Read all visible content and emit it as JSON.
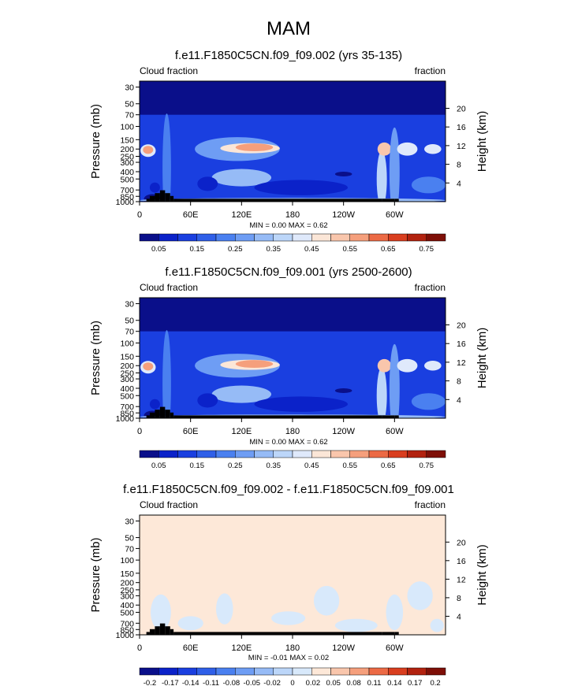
{
  "page": {
    "title": "MAM"
  },
  "palettes": {
    "seq": [
      "#0a0f8a",
      "#0b22c9",
      "#1a3fe0",
      "#2f5fe8",
      "#4a80f0",
      "#6e9df4",
      "#96bbf6",
      "#bcd6f9",
      "#dfe9fb",
      "#fbe6d7",
      "#f9c6ac",
      "#f59f7c",
      "#ec6a45",
      "#d93e1f",
      "#b2220f",
      "#7e0f07"
    ],
    "div": [
      "#0a0f8a",
      "#0b22c9",
      "#1a3fe0",
      "#2f5fe8",
      "#4a80f0",
      "#6e9df4",
      "#96bbf6",
      "#bcd6f9",
      "#d8e9fb",
      "#fde8d8",
      "#f9c6ac",
      "#f59f7c",
      "#ec6a45",
      "#d93e1f",
      "#b2220f",
      "#7e0f07"
    ],
    "terrain": "#000000"
  },
  "chart_data": [
    {
      "type": "heatmap",
      "title": "f.e11.F1850C5CN.f09_f09.002 (yrs 35-135)",
      "left_label": "Cloud fraction",
      "right_label": "fraction",
      "ylabel": "Pressure (mb)",
      "ylabel_right": "Height (km)",
      "xticks": [
        "0",
        "60E",
        "120E",
        "180",
        "120W",
        "60W"
      ],
      "yticks": [
        "30",
        "50",
        "70",
        "100",
        "150",
        "200",
        "250",
        "300",
        "400",
        "500",
        "700",
        "850",
        "1000"
      ],
      "yticks_right": [
        "20",
        "16",
        "12",
        "8",
        "4"
      ],
      "stats": "MIN =   0.00  MAX =   0.62",
      "colorbar": [
        "0.05",
        "0.15",
        "0.25",
        "0.35",
        "0.45",
        "0.55",
        "0.65",
        "0.75"
      ],
      "palette": "seq",
      "bg_level": 2,
      "blobs": [
        {
          "lon": 15,
          "p": 930,
          "rx": 10,
          "rp": 400,
          "level": 0
        },
        {
          "lon": 18,
          "p": 650,
          "rx": 6,
          "rp": 200,
          "level": 1
        },
        {
          "lon": 10,
          "p": 210,
          "rx": 9,
          "rp": 80,
          "level": 8
        },
        {
          "lon": 10,
          "p": 205,
          "rx": 6,
          "rp": 50,
          "level": 11
        },
        {
          "lon": 32,
          "p": 350,
          "rx": 5,
          "rp": 650,
          "level": 4
        },
        {
          "lon": 115,
          "p": 200,
          "rx": 50,
          "rp": 140,
          "level": 5
        },
        {
          "lon": 120,
          "p": 480,
          "rx": 35,
          "rp": 250,
          "level": 6
        },
        {
          "lon": 130,
          "p": 195,
          "rx": 35,
          "rp": 60,
          "level": 9
        },
        {
          "lon": 135,
          "p": 190,
          "rx": 22,
          "rp": 45,
          "level": 11
        },
        {
          "lon": 190,
          "p": 650,
          "rx": 55,
          "rp": 300,
          "level": 1
        },
        {
          "lon": 240,
          "p": 430,
          "rx": 10,
          "rp": 60,
          "level": 0
        },
        {
          "lon": 80,
          "p": 580,
          "rx": 12,
          "rp": 250,
          "level": 1
        },
        {
          "lon": 285,
          "p": 500,
          "rx": 6,
          "rp": 700,
          "level": 7
        },
        {
          "lon": 288,
          "p": 200,
          "rx": 8,
          "rp": 80,
          "level": 10
        },
        {
          "lon": 300,
          "p": 400,
          "rx": 6,
          "rp": 700,
          "level": 5
        },
        {
          "lon": 315,
          "p": 200,
          "rx": 12,
          "rp": 80,
          "level": 8
        },
        {
          "lon": 345,
          "p": 200,
          "rx": 10,
          "rp": 60,
          "level": 8
        },
        {
          "lon": 340,
          "p": 600,
          "rx": 20,
          "rp": 300,
          "level": 4
        },
        {
          "lon": 180,
          "p": 960,
          "rx": 180,
          "rp": 50,
          "level": 6
        }
      ],
      "terrain": [
        [
          3,
          0
        ],
        [
          8,
          1
        ],
        [
          12,
          2
        ],
        [
          18,
          3
        ],
        [
          24,
          4
        ],
        [
          30,
          3
        ],
        [
          36,
          2
        ],
        [
          40,
          1
        ],
        [
          285,
          1
        ],
        [
          300,
          1
        ],
        [
          305,
          0
        ]
      ]
    },
    {
      "type": "heatmap",
      "title": "f.e11.F1850C5CN.f09_f09.001 (yrs 2500-2600)",
      "left_label": "Cloud fraction",
      "right_label": "fraction",
      "ylabel": "Pressure (mb)",
      "ylabel_right": "Height (km)",
      "xticks": [
        "0",
        "60E",
        "120E",
        "180",
        "120W",
        "60W"
      ],
      "yticks": [
        "30",
        "50",
        "70",
        "100",
        "150",
        "200",
        "250",
        "300",
        "400",
        "500",
        "700",
        "850",
        "1000"
      ],
      "yticks_right": [
        "20",
        "16",
        "12",
        "8",
        "4"
      ],
      "stats": "MIN =   0.00  MAX =   0.62",
      "colorbar": [
        "0.05",
        "0.15",
        "0.25",
        "0.35",
        "0.45",
        "0.55",
        "0.65",
        "0.75"
      ],
      "palette": "seq",
      "bg_level": 2,
      "blobs": [
        {
          "lon": 15,
          "p": 930,
          "rx": 10,
          "rp": 400,
          "level": 0
        },
        {
          "lon": 18,
          "p": 650,
          "rx": 6,
          "rp": 200,
          "level": 1
        },
        {
          "lon": 10,
          "p": 210,
          "rx": 9,
          "rp": 80,
          "level": 8
        },
        {
          "lon": 10,
          "p": 205,
          "rx": 6,
          "rp": 50,
          "level": 11
        },
        {
          "lon": 32,
          "p": 350,
          "rx": 5,
          "rp": 650,
          "level": 4
        },
        {
          "lon": 115,
          "p": 200,
          "rx": 50,
          "rp": 140,
          "level": 5
        },
        {
          "lon": 120,
          "p": 480,
          "rx": 35,
          "rp": 250,
          "level": 6
        },
        {
          "lon": 130,
          "p": 195,
          "rx": 35,
          "rp": 60,
          "level": 9
        },
        {
          "lon": 135,
          "p": 190,
          "rx": 22,
          "rp": 45,
          "level": 11
        },
        {
          "lon": 190,
          "p": 650,
          "rx": 55,
          "rp": 300,
          "level": 1
        },
        {
          "lon": 240,
          "p": 430,
          "rx": 10,
          "rp": 60,
          "level": 0
        },
        {
          "lon": 80,
          "p": 580,
          "rx": 12,
          "rp": 250,
          "level": 1
        },
        {
          "lon": 285,
          "p": 500,
          "rx": 6,
          "rp": 700,
          "level": 7
        },
        {
          "lon": 288,
          "p": 200,
          "rx": 8,
          "rp": 80,
          "level": 10
        },
        {
          "lon": 300,
          "p": 400,
          "rx": 6,
          "rp": 700,
          "level": 5
        },
        {
          "lon": 315,
          "p": 200,
          "rx": 12,
          "rp": 80,
          "level": 8
        },
        {
          "lon": 345,
          "p": 200,
          "rx": 10,
          "rp": 60,
          "level": 8
        },
        {
          "lon": 340,
          "p": 600,
          "rx": 20,
          "rp": 300,
          "level": 4
        },
        {
          "lon": 180,
          "p": 960,
          "rx": 180,
          "rp": 50,
          "level": 6
        }
      ],
      "terrain": [
        [
          3,
          0
        ],
        [
          8,
          1
        ],
        [
          12,
          2
        ],
        [
          18,
          3
        ],
        [
          24,
          4
        ],
        [
          30,
          3
        ],
        [
          36,
          2
        ],
        [
          40,
          1
        ],
        [
          285,
          1
        ],
        [
          300,
          1
        ],
        [
          305,
          0
        ]
      ]
    },
    {
      "type": "heatmap",
      "title": "f.e11.F1850C5CN.f09_f09.002 - f.e11.F1850C5CN.f09_f09.001",
      "left_label": "Cloud fraction",
      "right_label": "fraction",
      "ylabel": "Pressure (mb)",
      "ylabel_right": "Height (km)",
      "xticks": [
        "0",
        "60E",
        "120E",
        "180",
        "120W",
        "60W"
      ],
      "yticks": [
        "30",
        "50",
        "70",
        "100",
        "150",
        "200",
        "250",
        "300",
        "400",
        "500",
        "700",
        "850",
        "1000"
      ],
      "yticks_right": [
        "20",
        "16",
        "12",
        "8",
        "4"
      ],
      "stats": "MIN =  -0.01  MAX =   0.02",
      "colorbar": [
        "-0.2",
        "-0.17",
        "-0.14",
        "-0.11",
        "-0.08",
        "-0.05",
        "-0.02",
        "0",
        "0.02",
        "0.05",
        "0.08",
        "0.11",
        "0.14",
        "0.17",
        "0.2"
      ],
      "palette": "div",
      "bg_level": 9,
      "blobs": [
        {
          "lon": 25,
          "p": 500,
          "rx": 12,
          "rp": 500,
          "level": 8
        },
        {
          "lon": 60,
          "p": 700,
          "rx": 15,
          "rp": 300,
          "level": 8
        },
        {
          "lon": 100,
          "p": 450,
          "rx": 10,
          "rp": 400,
          "level": 8
        },
        {
          "lon": 175,
          "p": 600,
          "rx": 20,
          "rp": 250,
          "level": 8
        },
        {
          "lon": 220,
          "p": 350,
          "rx": 15,
          "rp": 300,
          "level": 8
        },
        {
          "lon": 255,
          "p": 750,
          "rx": 25,
          "rp": 300,
          "level": 8
        },
        {
          "lon": 300,
          "p": 500,
          "rx": 10,
          "rp": 500,
          "level": 8
        },
        {
          "lon": 330,
          "p": 300,
          "rx": 15,
          "rp": 250,
          "level": 8
        },
        {
          "lon": 350,
          "p": 750,
          "rx": 8,
          "rp": 300,
          "level": 8
        }
      ],
      "terrain": [
        [
          3,
          0
        ],
        [
          8,
          1
        ],
        [
          12,
          2
        ],
        [
          18,
          3
        ],
        [
          24,
          4
        ],
        [
          30,
          3
        ],
        [
          36,
          2
        ],
        [
          40,
          1
        ],
        [
          285,
          1
        ],
        [
          300,
          1
        ],
        [
          305,
          0
        ]
      ]
    }
  ]
}
